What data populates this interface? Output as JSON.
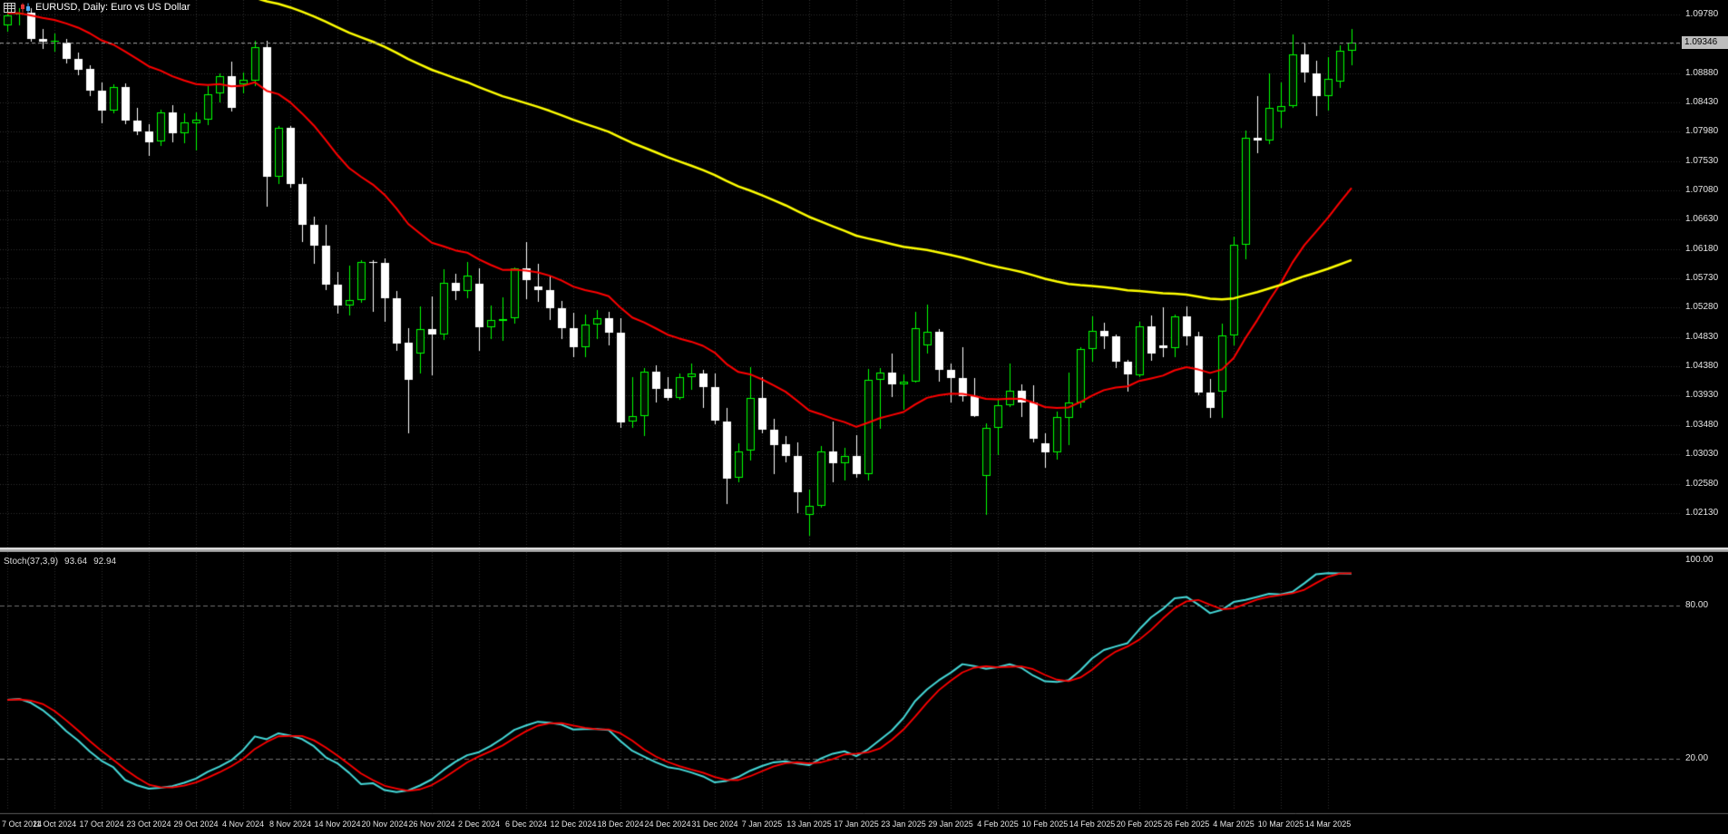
{
  "header": {
    "title": "EURUSD, Daily: Euro vs US Dollar",
    "icons": [
      "chart-grid-icon",
      "candlestick-icon"
    ]
  },
  "price_axis": {
    "labels": [
      "1.09780",
      "1.08880",
      "1.08430",
      "1.07980",
      "1.07530",
      "1.07080",
      "1.06630",
      "1.06180",
      "1.05730",
      "1.05280",
      "1.04830",
      "1.04380",
      "1.03930",
      "1.03480",
      "1.03030",
      "1.02580",
      "1.02130"
    ],
    "bid": 1.09346,
    "bid_label": "1.09346"
  },
  "stoch_panel": {
    "label": "Stoch(37,3,9)",
    "main_value": "93.64",
    "signal_value": "92.94",
    "axis_labels": [
      {
        "text": "100.00",
        "value": 100
      },
      {
        "text": "80.00",
        "value": 80
      },
      {
        "text": "20.00",
        "value": 20
      }
    ],
    "levels": [
      80,
      20
    ]
  },
  "colors": {
    "background": "#000000",
    "grid": "#2f2f2f",
    "bull": "#00ff00",
    "bull_fill": "#001400",
    "bear": "#ffffff",
    "ma_fast": "#ff0000",
    "ma_slow": "#ffff00",
    "stoch_main": "#45d8d8",
    "stoch_signal": "#ff0000",
    "axis_text": "#e6e6e6",
    "bid_line": "#9a9a9a",
    "bid_badge_bg": "#bdbdbd",
    "bid_badge_text": "#000000",
    "level_line": "#707070",
    "pane_border": "#5a5a5a"
  },
  "chart_data": {
    "type": "candlestick",
    "title": "EURUSD, Daily: Euro vs US Dollar",
    "symbol": "EURUSD",
    "timeframe": "Daily",
    "ylim": [
      1.016,
      1.1
    ],
    "grid": {
      "start": 1.0978,
      "step": 0.0045,
      "count": 18
    },
    "x_tick_step": 4,
    "dates": [
      "7 Oct 2024",
      "11 Oct 2024",
      "17 Oct 2024",
      "23 Oct 2024",
      "29 Oct 2024",
      "4 Nov 2024",
      "8 Nov 2024",
      "14 Nov 2024",
      "20 Nov 2024",
      "26 Nov 2024",
      "2 Dec 2024",
      "6 Dec 2024",
      "12 Dec 2024",
      "18 Dec 2024",
      "24 Dec 2024",
      "31 Dec 2024",
      "7 Jan 2025",
      "13 Jan 2025",
      "17 Jan 2025",
      "23 Jan 2025",
      "29 Jan 2025",
      "4 Feb 2025",
      "10 Feb 2025",
      "14 Feb 2025",
      "20 Feb 2025",
      "26 Feb 2025",
      "4 Mar 2025",
      "10 Mar 2025",
      "14 Mar 2025"
    ],
    "candles": [
      [
        1.0962,
        1.0985,
        1.0952,
        1.0977
      ],
      [
        1.0977,
        1.0987,
        1.0961,
        1.098
      ],
      [
        1.098,
        1.0987,
        1.0936,
        1.094
      ],
      [
        1.094,
        1.0955,
        1.0924,
        1.0936
      ],
      [
        1.0936,
        1.0948,
        1.092,
        1.0937
      ],
      [
        1.0935,
        1.094,
        1.0902,
        1.091
      ],
      [
        1.091,
        1.092,
        1.0885,
        1.0894
      ],
      [
        1.0894,
        1.09,
        1.0853,
        1.0861
      ],
      [
        1.0861,
        1.0873,
        1.0811,
        1.083
      ],
      [
        1.083,
        1.087,
        1.0826,
        1.0866
      ],
      [
        1.0866,
        1.0872,
        1.081,
        1.0815
      ],
      [
        1.0815,
        1.0834,
        1.0792,
        1.0799
      ],
      [
        1.0799,
        1.081,
        1.0761,
        1.0782
      ],
      [
        1.0782,
        1.0832,
        1.0777,
        1.0827
      ],
      [
        1.0827,
        1.0839,
        1.0782,
        1.0795
      ],
      [
        1.0795,
        1.0826,
        1.078,
        1.0812
      ],
      [
        1.0812,
        1.0827,
        1.0769,
        1.0817
      ],
      [
        1.0817,
        1.0868,
        1.0808,
        1.0856
      ],
      [
        1.0856,
        1.0888,
        1.0844,
        1.0883
      ],
      [
        1.0883,
        1.0905,
        1.0828,
        1.0834
      ],
      [
        1.087,
        1.0889,
        1.0857,
        1.0877
      ],
      [
        1.0877,
        1.0937,
        1.0868,
        1.0928
      ],
      [
        1.0928,
        1.0937,
        1.0683,
        1.0729
      ],
      [
        1.0729,
        1.0807,
        1.0718,
        1.0804
      ],
      [
        1.0804,
        1.0806,
        1.0711,
        1.0718
      ],
      [
        1.0718,
        1.0728,
        1.0629,
        1.0655
      ],
      [
        1.0655,
        1.0667,
        1.0595,
        1.0623
      ],
      [
        1.0623,
        1.0655,
        1.0555,
        1.0563
      ],
      [
        1.0563,
        1.0583,
        1.0519,
        1.0531
      ],
      [
        1.0531,
        1.0592,
        1.0516,
        1.054
      ],
      [
        1.054,
        1.0601,
        1.0536,
        1.0598
      ],
      [
        1.0598,
        1.0601,
        1.0522,
        1.0597
      ],
      [
        1.0597,
        1.0604,
        1.0506,
        1.0543
      ],
      [
        1.0543,
        1.0554,
        1.0462,
        1.0474
      ],
      [
        1.0474,
        1.0496,
        1.0335,
        1.0417
      ],
      [
        1.0458,
        1.053,
        1.0427,
        1.0495
      ],
      [
        1.0495,
        1.0545,
        1.0424,
        1.0487
      ],
      [
        1.0487,
        1.0587,
        1.0478,
        1.0566
      ],
      [
        1.0566,
        1.058,
        1.054,
        1.0554
      ],
      [
        1.0554,
        1.0598,
        1.0542,
        1.0577
      ],
      [
        1.0565,
        1.0588,
        1.0461,
        1.0498
      ],
      [
        1.0498,
        1.0532,
        1.048,
        1.0509
      ],
      [
        1.0509,
        1.0544,
        1.0477,
        1.0511
      ],
      [
        1.0511,
        1.059,
        1.0504,
        1.0588
      ],
      [
        1.0588,
        1.0629,
        1.0542,
        1.057
      ],
      [
        1.056,
        1.0595,
        1.0537,
        1.0555
      ],
      [
        1.0555,
        1.0576,
        1.0509,
        1.0527
      ],
      [
        1.0527,
        1.0538,
        1.048,
        1.0496
      ],
      [
        1.0496,
        1.052,
        1.0452,
        1.0467
      ],
      [
        1.0467,
        1.0518,
        1.0453,
        1.0502
      ],
      [
        1.0502,
        1.0525,
        1.048,
        1.0512
      ],
      [
        1.0512,
        1.0521,
        1.047,
        1.049
      ],
      [
        1.049,
        1.0512,
        1.0344,
        1.0353
      ],
      [
        1.0353,
        1.0421,
        1.0343,
        1.0362
      ],
      [
        1.0362,
        1.0436,
        1.0332,
        1.043
      ],
      [
        1.043,
        1.044,
        1.0383,
        1.0404
      ],
      [
        1.0404,
        1.0421,
        1.0385,
        1.039
      ],
      [
        1.039,
        1.0427,
        1.0386,
        1.0422
      ],
      [
        1.0422,
        1.0443,
        1.0402,
        1.0427
      ],
      [
        1.0427,
        1.0432,
        1.0374,
        1.0406
      ],
      [
        1.0406,
        1.0427,
        1.0349,
        1.0354
      ],
      [
        1.0354,
        1.0374,
        1.0226,
        1.0267
      ],
      [
        1.0267,
        1.032,
        1.026,
        1.0308
      ],
      [
        1.0308,
        1.0437,
        1.0294,
        1.0389
      ],
      [
        1.0389,
        1.0422,
        1.0336,
        1.0341
      ],
      [
        1.0341,
        1.0358,
        1.0273,
        1.0318
      ],
      [
        1.0318,
        1.0331,
        1.029,
        1.03
      ],
      [
        1.03,
        1.0322,
        1.0213,
        1.0244
      ],
      [
        1.021,
        1.0249,
        1.0178,
        1.0224
      ],
      [
        1.0224,
        1.0316,
        1.0222,
        1.0307
      ],
      [
        1.0307,
        1.0354,
        1.0261,
        1.0289
      ],
      [
        1.0289,
        1.0313,
        1.0263,
        1.03
      ],
      [
        1.03,
        1.0332,
        1.0266,
        1.0272
      ],
      [
        1.0272,
        1.0434,
        1.0263,
        1.0417
      ],
      [
        1.0417,
        1.0435,
        1.0342,
        1.0428
      ],
      [
        1.0428,
        1.0457,
        1.039,
        1.041
      ],
      [
        1.041,
        1.0425,
        1.0371,
        1.0414
      ],
      [
        1.0414,
        1.0521,
        1.0412,
        1.0496
      ],
      [
        1.047,
        1.0533,
        1.0458,
        1.0491
      ],
      [
        1.0491,
        1.0495,
        1.0415,
        1.0433
      ],
      [
        1.0433,
        1.0442,
        1.0382,
        1.042
      ],
      [
        1.042,
        1.0467,
        1.0383,
        1.0392
      ],
      [
        1.0392,
        1.042,
        1.036,
        1.0362
      ],
      [
        1.027,
        1.035,
        1.021,
        1.0344
      ],
      [
        1.0344,
        1.0388,
        1.0302,
        1.0379
      ],
      [
        1.0379,
        1.0442,
        1.0375,
        1.0401
      ],
      [
        1.0401,
        1.041,
        1.036,
        1.0383
      ],
      [
        1.0383,
        1.0409,
        1.0321,
        1.0328
      ],
      [
        1.032,
        1.0335,
        1.0282,
        1.0306
      ],
      [
        1.0306,
        1.0368,
        1.0294,
        1.036
      ],
      [
        1.036,
        1.0428,
        1.0317,
        1.0383
      ],
      [
        1.0383,
        1.0468,
        1.0375,
        1.0465
      ],
      [
        1.0465,
        1.0514,
        1.0445,
        1.0493
      ],
      [
        1.0493,
        1.0505,
        1.0464,
        1.0484
      ],
      [
        1.0484,
        1.0487,
        1.0436,
        1.0445
      ],
      [
        1.0445,
        1.0448,
        1.04,
        1.0425
      ],
      [
        1.0425,
        1.0506,
        1.0421,
        1.05
      ],
      [
        1.05,
        1.0516,
        1.0446,
        1.0458
      ],
      [
        1.047,
        1.0528,
        1.0452,
        1.0466
      ],
      [
        1.0466,
        1.0518,
        1.0453,
        1.0514
      ],
      [
        1.0514,
        1.053,
        1.047,
        1.0484
      ],
      [
        1.0484,
        1.0491,
        1.0394,
        1.0398
      ],
      [
        1.0398,
        1.0419,
        1.0359,
        1.0375
      ],
      [
        1.04,
        1.0504,
        1.036,
        1.0486
      ],
      [
        1.0486,
        1.0637,
        1.047,
        1.0625
      ],
      [
        1.0625,
        1.08,
        1.0602,
        1.0789
      ],
      [
        1.0789,
        1.0853,
        1.0766,
        1.0785
      ],
      [
        1.0785,
        1.0888,
        1.078,
        1.0835
      ],
      [
        1.0828,
        1.0874,
        1.0805,
        1.0837
      ],
      [
        1.0837,
        1.0947,
        1.0835,
        1.0916
      ],
      [
        1.0916,
        1.0935,
        1.0874,
        1.0888
      ],
      [
        1.0888,
        1.0907,
        1.0822,
        1.0853
      ],
      [
        1.0853,
        1.0912,
        1.083,
        1.0879
      ],
      [
        1.0875,
        1.093,
        1.0865,
        1.0922
      ],
      [
        1.0922,
        1.0955,
        1.09,
        1.09346
      ]
    ],
    "pre_closes": [
      1.0965,
      1.098,
      1.0995,
      1.101,
      1.1,
      1.0985,
      1.0972,
      1.096,
      1.0975,
      1.099,
      1.1005,
      1.0992,
      1.0978,
      1.0964,
      1.0952,
      1.0968,
      1.0984,
      1.0996,
      1.1008,
      1.0994,
      1.098,
      1.0966,
      1.0978,
      1.0992,
      1.1006,
      1.1018,
      1.1002,
      1.0988,
      1.0974,
      1.0962,
      1.0976,
      1.099,
      1.0978,
      1.0966,
      1.0974,
      1.097
    ],
    "indicators": [
      {
        "name": "ma-fast",
        "type": "ema",
        "period": 21,
        "color": "#ff0000",
        "width": 2
      },
      {
        "name": "ma-slow",
        "type": "ema",
        "period": 100,
        "color": "#ffff00",
        "width": 2.5,
        "seed": 1.118
      }
    ],
    "stochastic": {
      "k_period": 37,
      "d_period": 3,
      "slowing": 9,
      "range": [
        0,
        100
      ],
      "levels": [
        80,
        20
      ],
      "main_color": "#45d8d8",
      "signal_color": "#ff0000",
      "main_value": 93.64,
      "signal_value": 92.94
    }
  }
}
